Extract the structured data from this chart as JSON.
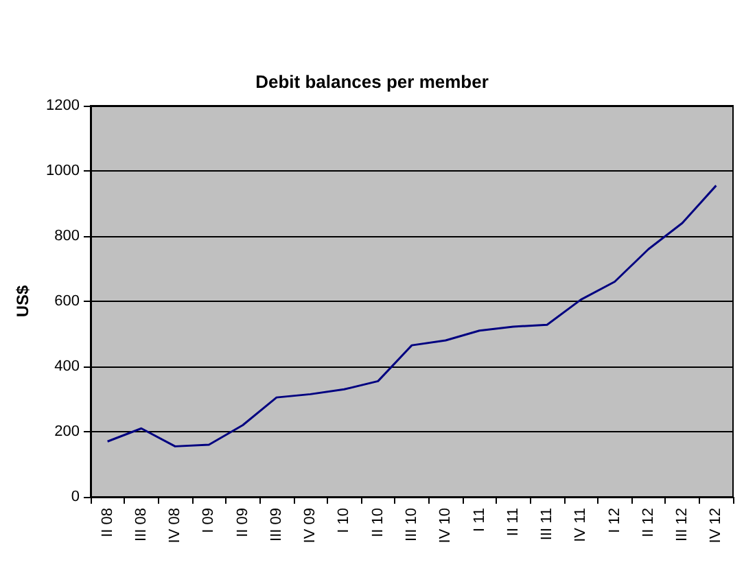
{
  "chart_data": {
    "type": "line",
    "title": "Debit balances per member",
    "ylabel": "US$",
    "categories": [
      "II 08",
      "III 08",
      "IV 08",
      "I 09",
      "II 09",
      "III 09",
      "IV 09",
      "I 10",
      "II 10",
      "III 10",
      "IV 10",
      "I 11",
      "II 11",
      "III 11",
      "IV 11",
      "I 12",
      "II 12",
      "III 12",
      "IV 12"
    ],
    "series": [
      {
        "color": "#000080",
        "values": [
          170,
          210,
          155,
          160,
          220,
          305,
          315,
          330,
          355,
          465,
          480,
          510,
          522,
          528,
          605,
          660,
          760,
          840,
          955
        ]
      }
    ],
    "ylim": [
      0,
      1200
    ],
    "yticks": [
      0,
      200,
      400,
      600,
      800,
      1000,
      1200
    ],
    "grid": "y",
    "marker": "none",
    "line_style": "solid"
  }
}
